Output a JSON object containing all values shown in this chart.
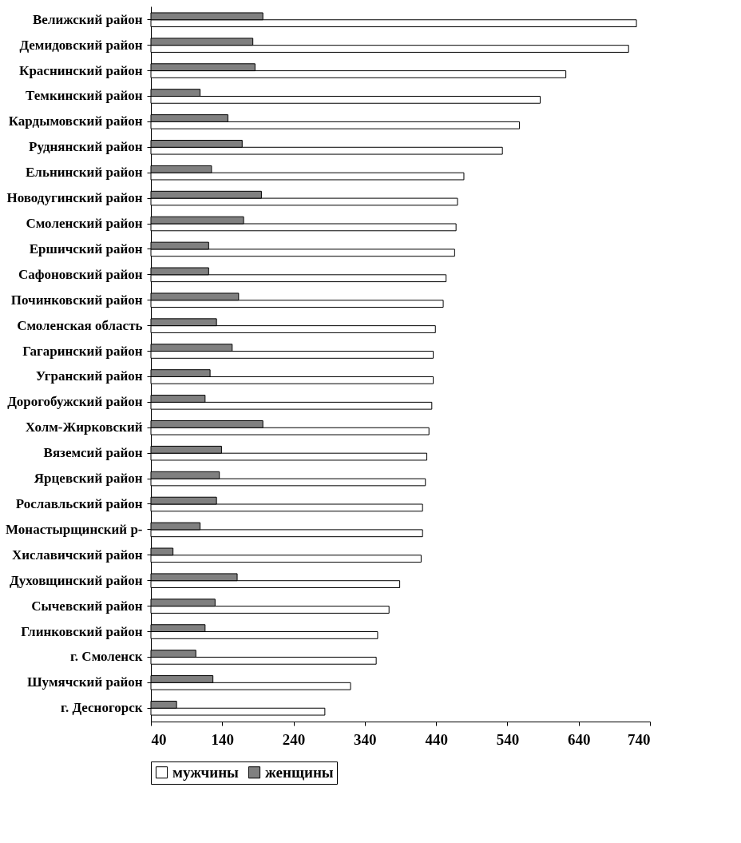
{
  "chart_data": {
    "type": "bar",
    "orientation": "horizontal",
    "categories": [
      "Велижский район",
      "Демидовский район",
      "Краснинский район",
      "Темкинский район",
      "Кардымовский район",
      "Руднянский район",
      "Ельнинский район",
      "Новодугинский район",
      "Смоленский район",
      "Ершичский район",
      "Сафоновский район",
      "Починковский район",
      "Смоленская область",
      "Гагаринский район",
      "Угранский район",
      "Дорогобужский район",
      "Холм-Жирковский",
      "Вяземсий район",
      "Ярцевский район",
      "Рославльский район",
      "Монастырщинский р-",
      "Хиславичский район",
      "Духовщинский район",
      "Сычевский район",
      "Глинковский район",
      "г. Смоленск",
      "Шумячский район",
      "г. Десногорск"
    ],
    "series": [
      {
        "name": "мужчины",
        "color": "#ffffff",
        "values": [
          721,
          710,
          622,
          586,
          557,
          533,
          479,
          470,
          468,
          466,
          454,
          450,
          439,
          436,
          436,
          434,
          430,
          427,
          425,
          421,
          421,
          419,
          389,
          374,
          358,
          356,
          320,
          284
        ]
      },
      {
        "name": "женщины",
        "color": "#808080",
        "values": [
          197,
          183,
          186,
          109,
          148,
          168,
          125,
          195,
          170,
          121,
          121,
          163,
          132,
          154,
          123,
          116,
          197,
          139,
          136,
          132,
          109,
          71,
          161,
          130,
          116,
          103,
          127,
          76
        ]
      }
    ],
    "xlim": [
      40,
      740
    ],
    "xticks": [
      40,
      140,
      240,
      340,
      440,
      540,
      640,
      740
    ],
    "grid": false,
    "legend": "bottom"
  }
}
